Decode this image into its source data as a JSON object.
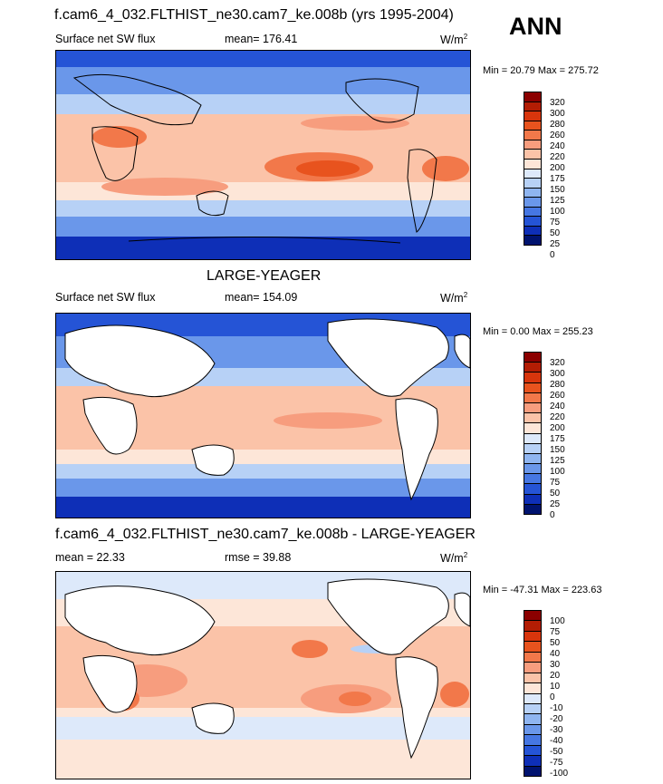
{
  "header": {
    "main_title": "f.cam6_4_032.FLTHIST_ne30.cam7_ke.008b (yrs 1995-2004)",
    "season": "ANN"
  },
  "panels": [
    {
      "title": "",
      "variable": "Surface net SW flux",
      "stat": "mean= 176.41",
      "units": "W/m",
      "units_sup": "2",
      "minmax": "Min =  20.79 Max = 275.72",
      "levels": [
        "320",
        "300",
        "280",
        "260",
        "240",
        "220",
        "200",
        "175",
        "150",
        "125",
        "100",
        "75",
        "50",
        "25",
        "0"
      ],
      "colors": [
        "#8b0000",
        "#b31d04",
        "#d8350c",
        "#e8531e",
        "#f2784a",
        "#f79d7e",
        "#fbc3a8",
        "#fde6d8",
        "#dde9fa",
        "#b7d1f6",
        "#8fb5f0",
        "#6a97ea",
        "#4677e3",
        "#2554d6",
        "#0e2fb7",
        "#00136f"
      ]
    },
    {
      "title": "LARGE-YEAGER",
      "variable": "Surface net SW flux",
      "stat": "mean= 154.09",
      "units": "W/m",
      "units_sup": "2",
      "minmax": "Min =   0.00 Max = 255.23",
      "levels": [
        "320",
        "300",
        "280",
        "260",
        "240",
        "220",
        "200",
        "175",
        "150",
        "125",
        "100",
        "75",
        "50",
        "25",
        "0"
      ],
      "colors": [
        "#8b0000",
        "#b31d04",
        "#d8350c",
        "#e8531e",
        "#f2784a",
        "#f79d7e",
        "#fbc3a8",
        "#fde6d8",
        "#dde9fa",
        "#b7d1f6",
        "#8fb5f0",
        "#6a97ea",
        "#4677e3",
        "#2554d6",
        "#0e2fb7",
        "#00136f"
      ]
    },
    {
      "title": "f.cam6_4_032.FLTHIST_ne30.cam7_ke.008b - LARGE-YEAGER",
      "variable": "mean =  22.33",
      "stat": "rmse =  39.88",
      "units": "W/m",
      "units_sup": "2",
      "minmax": "Min = -47.31 Max = 223.63",
      "levels": [
        "100",
        "75",
        "50",
        "40",
        "30",
        "20",
        "10",
        "0",
        "-10",
        "-20",
        "-30",
        "-40",
        "-50",
        "-75",
        "-100"
      ],
      "colors": [
        "#8b0000",
        "#b31d04",
        "#d8350c",
        "#e8531e",
        "#f2784a",
        "#f79d7e",
        "#fbc3a8",
        "#fde6d8",
        "#dde9fa",
        "#b7d1f6",
        "#8fb5f0",
        "#6a97ea",
        "#4677e3",
        "#2554d6",
        "#0e2fb7",
        "#00136f"
      ]
    }
  ]
}
